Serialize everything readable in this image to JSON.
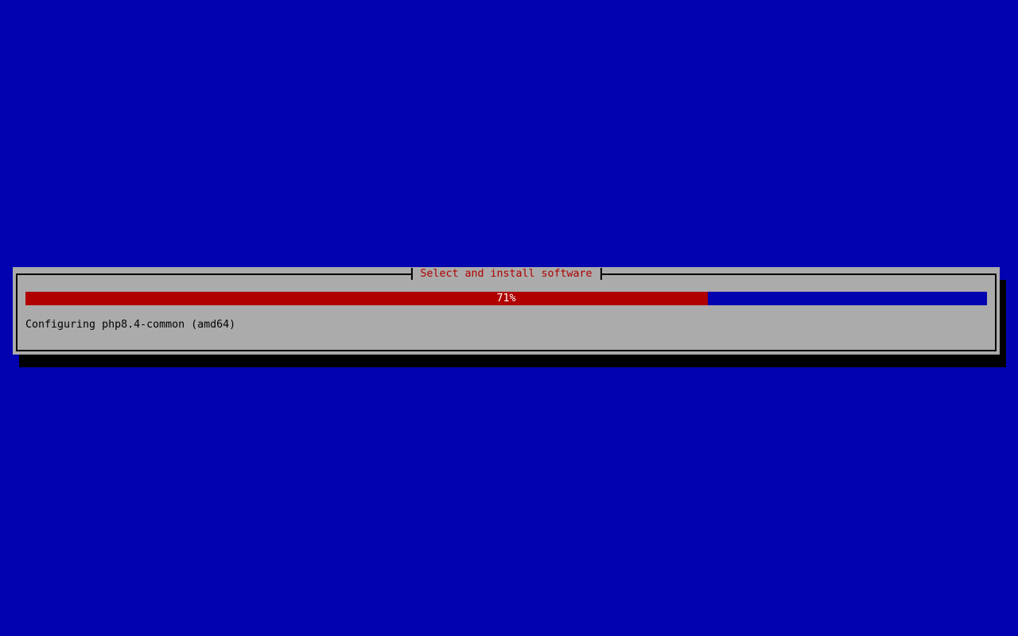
{
  "dialog": {
    "title": "Select and install software",
    "progress": {
      "percent": 71,
      "label": "71%"
    },
    "status_text": "Configuring php8.4-common (amd64)"
  },
  "colors": {
    "background_blue": "#0202b0",
    "dialog_gray": "#ababab",
    "progress_fill_red": "#b00000",
    "progress_remainder_blue": "#0202b0",
    "title_text_red": "#b00000",
    "border_shadow_black": "#000000",
    "percent_text_white": "#ffffff",
    "status_text_black": "#000000"
  }
}
